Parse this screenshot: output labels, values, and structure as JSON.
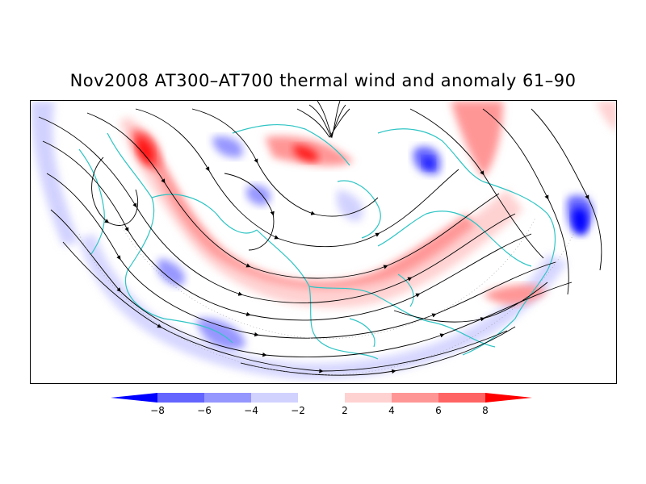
{
  "title": "Nov2008 AT300–AT700 thermal wind and anomaly 61–90",
  "colorbar": {
    "labels": [
      "−8",
      "−6",
      "−4",
      "−2",
      "2",
      "4",
      "6",
      "8"
    ],
    "colors": [
      "#0000ff",
      "#6464ff",
      "#9696ff",
      "#d2d2ff",
      "#ffffff",
      "#ffd2d2",
      "#ff9696",
      "#ff6464",
      "#ff0000"
    ]
  },
  "colors": {
    "coastline": "#2ec4c4",
    "streamline": "#000000",
    "frame": "#000000"
  }
}
